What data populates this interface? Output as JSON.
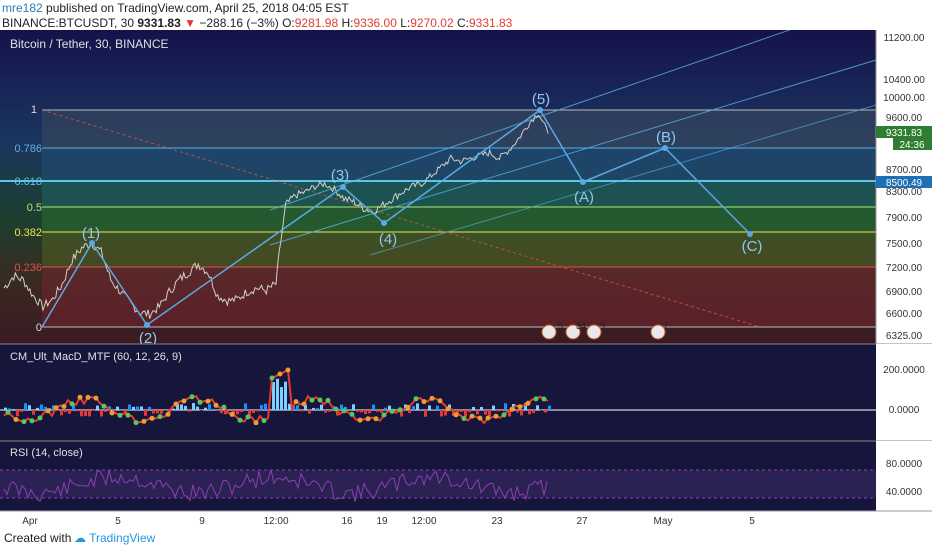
{
  "header": {
    "author": "mre182",
    "published": "published on TradingView.com, April 25, 2018 04:05 EST",
    "symbol": "BINANCE:BTCUSDT, 30",
    "last": "9331.83",
    "change": "−288.16 (−3%)",
    "o_label": "O:",
    "o": "9281.98",
    "h_label": "H:",
    "h": "9336.00",
    "l_label": "L:",
    "l": "9270.02",
    "c_label": "C:",
    "c": "9331.83"
  },
  "chart_title": "Bitcoin / Tether, 30, BINANCE",
  "colors": {
    "up": "#2e7d32",
    "down": "#e53935",
    "wave": "#5aa9e6",
    "fib_line": "#5cc6e8",
    "rsi": "#8a3fb5",
    "panel_bg": "#16163c"
  },
  "chart_data": {
    "type": "line",
    "price_axis": {
      "ticks": [
        "11200.00",
        "10400.00",
        "10000.00",
        "9600.00",
        "8700.00",
        "8300.00",
        "7900.00",
        "7500.00",
        "7200.00",
        "6900.00",
        "6600.00",
        "6325.00"
      ],
      "ylim": [
        6325,
        11200
      ]
    },
    "last_price_label": "9331.83",
    "countdown": "24:36",
    "level_price_label": "8500.49",
    "x_ticks": [
      "Apr",
      "5",
      "9",
      "12:00",
      "16",
      "19",
      "12:00",
      "23",
      "27",
      "May",
      "5"
    ],
    "fib_levels": [
      {
        "label": "1",
        "color": "#dddddd"
      },
      {
        "label": "0.786",
        "color": "#5ab0e0"
      },
      {
        "label": "0.618",
        "color": "#5cc6e8"
      },
      {
        "label": "0.5",
        "color": "#aee86e"
      },
      {
        "label": "0.382",
        "color": "#e6e84a"
      },
      {
        "label": "0.236",
        "color": "#e05050"
      },
      {
        "label": "0",
        "color": "#dddddd"
      }
    ],
    "wave_labels": [
      "(1)",
      "(2)",
      "(3)",
      "(4)",
      "(5)",
      "(A)",
      "(B)",
      "(C)"
    ],
    "event_labels": [
      "5",
      "34",
      "9",
      "7"
    ],
    "series": [
      {
        "name": "Bitcoin / Tether, 30, BINANCE",
        "approx_close": [
          6950,
          7100,
          7050,
          6850,
          6700,
          6800,
          7000,
          7300,
          7450,
          7520,
          7400,
          7050,
          6900,
          6750,
          6620,
          6600,
          6700,
          6900,
          7050,
          7150,
          7250,
          7150,
          6850,
          6780,
          6800,
          6900,
          6950,
          6920,
          7000,
          8100,
          8250,
          8300,
          8400,
          8450,
          8350,
          8200,
          8150,
          8050,
          8000,
          8100,
          8200,
          8300,
          8400,
          8450,
          8600,
          8750,
          8900,
          8850,
          8900,
          8950,
          9000,
          8900,
          9050,
          9250,
          9500,
          9700,
          9331.83
        ]
      }
    ]
  },
  "macd": {
    "title": "CM_Ult_MacD_MTF (60, 12, 26, 9)",
    "ticks": [
      "200.0000",
      "0.0000"
    ]
  },
  "rsi": {
    "title": "RSI (14, close)",
    "ticks": [
      "80.0000",
      "40.0000"
    ]
  },
  "footer": {
    "created_with": "Created with",
    "brand": "TradingView"
  }
}
